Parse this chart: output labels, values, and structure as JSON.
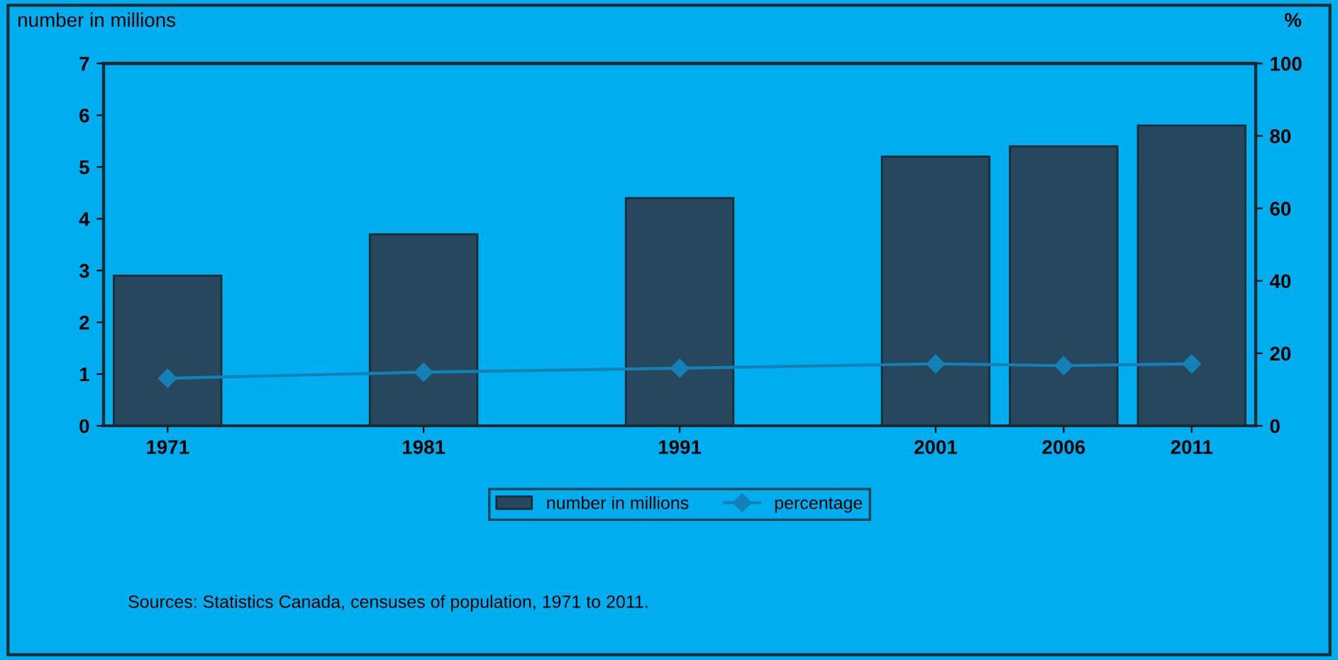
{
  "chart_data": {
    "type": "bar",
    "x": [
      1971,
      1981,
      1991,
      2001,
      2006,
      2011
    ],
    "xlim": [
      1968.5,
      2013.5
    ],
    "xticks": [
      1971,
      1981,
      1991,
      2001,
      2006,
      2011
    ],
    "series": [
      {
        "name": "number in millions",
        "color": "#27475f",
        "values": [
          2.9,
          3.7,
          4.4,
          5.2,
          5.4,
          5.8
        ]
      },
      {
        "name": "percentage",
        "type": "line",
        "axis": "y2",
        "color": "#1480b8",
        "marker": "diamond",
        "values": [
          13.1,
          14.8,
          15.9,
          17.1,
          16.6,
          17.1
        ]
      }
    ],
    "ylabel": "number in millions",
    "y2label": "%",
    "ylim": [
      0,
      7
    ],
    "yticks": [
      0,
      1,
      2,
      3,
      4,
      5,
      6,
      7
    ],
    "y2lim": [
      0,
      100
    ],
    "y2ticks": [
      0,
      20,
      40,
      60,
      80,
      100
    ],
    "grid": false,
    "legend": "bottom",
    "annotations": [
      "Sources: Statistics Canada, censuses of population, 1971 to 2011."
    ]
  }
}
